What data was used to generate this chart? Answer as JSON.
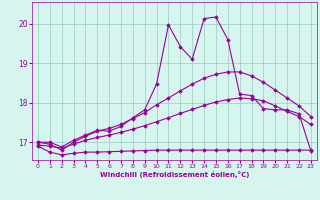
{
  "xlabel": "Windchill (Refroidissement éolien,°C)",
  "xlim": [
    -0.5,
    23.5
  ],
  "ylim": [
    16.55,
    20.55
  ],
  "yticks": [
    17,
    18,
    19,
    20
  ],
  "xticks": [
    0,
    1,
    2,
    3,
    4,
    5,
    6,
    7,
    8,
    9,
    10,
    11,
    12,
    13,
    14,
    15,
    16,
    17,
    18,
    19,
    20,
    21,
    22,
    23
  ],
  "bg_color": "#d6f5ef",
  "line_color": "#990099",
  "grid_color": "#99ccbb",
  "line1_x": [
    0,
    1,
    2,
    3,
    4,
    5,
    6,
    7,
    8,
    9,
    10,
    11,
    12,
    13,
    14,
    15,
    16,
    17,
    18,
    19,
    20,
    21,
    22,
    23
  ],
  "line1_y": [
    16.9,
    16.75,
    16.68,
    16.72,
    16.75,
    16.75,
    16.76,
    16.77,
    16.78,
    16.79,
    16.8,
    16.8,
    16.8,
    16.8,
    16.8,
    16.8,
    16.8,
    16.8,
    16.8,
    16.8,
    16.8,
    16.8,
    16.8,
    16.8
  ],
  "line2_x": [
    0,
    1,
    2,
    3,
    4,
    5,
    6,
    7,
    8,
    9,
    10,
    11,
    12,
    13,
    14,
    15,
    16,
    17,
    18,
    19,
    20,
    21,
    22,
    23
  ],
  "line2_y": [
    16.93,
    16.9,
    16.85,
    16.95,
    17.05,
    17.12,
    17.18,
    17.25,
    17.33,
    17.42,
    17.52,
    17.62,
    17.73,
    17.83,
    17.93,
    18.02,
    18.08,
    18.12,
    18.1,
    18.05,
    17.92,
    17.78,
    17.65,
    17.45
  ],
  "line3_x": [
    0,
    1,
    2,
    3,
    4,
    5,
    6,
    7,
    8,
    9,
    10,
    11,
    12,
    13,
    14,
    15,
    16,
    17,
    18,
    19,
    20,
    21,
    22,
    23
  ],
  "line3_y": [
    17.0,
    16.95,
    16.8,
    17.0,
    17.15,
    17.28,
    17.35,
    17.45,
    17.6,
    17.75,
    17.95,
    18.12,
    18.3,
    18.47,
    18.62,
    18.72,
    18.78,
    18.78,
    18.68,
    18.52,
    18.32,
    18.12,
    17.92,
    17.65
  ],
  "line4_x": [
    0,
    1,
    2,
    3,
    4,
    5,
    6,
    7,
    8,
    9,
    10,
    11,
    12,
    13,
    14,
    15,
    16,
    17,
    18,
    19,
    20,
    21,
    22,
    23
  ],
  "line4_y": [
    17.0,
    17.0,
    16.88,
    17.05,
    17.18,
    17.3,
    17.28,
    17.4,
    17.62,
    17.82,
    18.48,
    19.97,
    19.42,
    19.1,
    20.13,
    20.17,
    19.6,
    18.22,
    18.18,
    17.85,
    17.82,
    17.82,
    17.72,
    16.78
  ]
}
